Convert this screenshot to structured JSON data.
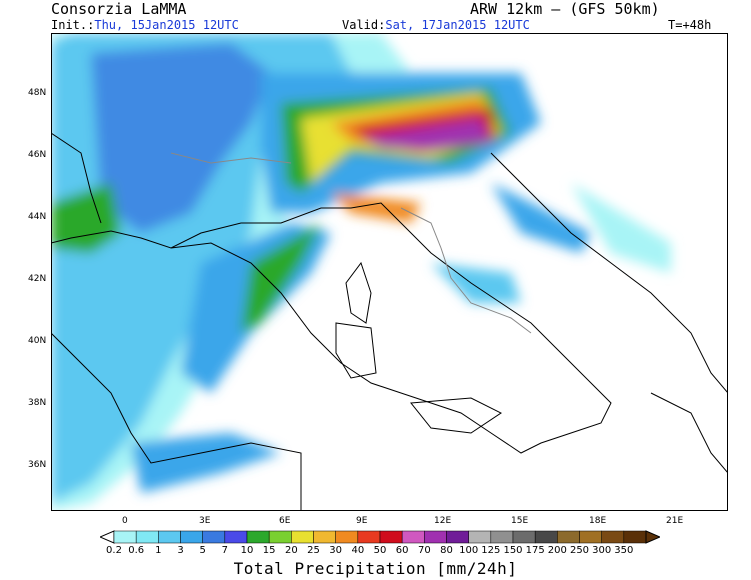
{
  "header": {
    "org": "Consorzia LaMMA",
    "model": "ARW 12km – (GFS 50km)",
    "init_label": "Init.:",
    "init_value": "Thu, 15Jan2015 12UTC",
    "valid_label": "Valid:",
    "valid_value": "Sat, 17Jan2015 12UTC",
    "lead": "T=+48h"
  },
  "axes": {
    "lat": [
      "48N",
      "46N",
      "44N",
      "42N",
      "40N",
      "38N",
      "36N"
    ],
    "lon": [
      "0",
      "3E",
      "6E",
      "9E",
      "12E",
      "15E",
      "18E",
      "21E"
    ]
  },
  "colorbar": {
    "labels": [
      "0.2",
      "0.6",
      "1",
      "3",
      "5",
      "7",
      "10",
      "15",
      "20",
      "25",
      "30",
      "40",
      "50",
      "60",
      "70",
      "80",
      "100",
      "125",
      "150",
      "175",
      "200",
      "250",
      "300",
      "350"
    ],
    "colors": [
      "#a8f4f6",
      "#80e8f4",
      "#5cc8f0",
      "#3aa6ea",
      "#3a7ae0",
      "#4a4ae8",
      "#2ca82c",
      "#7ad030",
      "#e8e030",
      "#f0b830",
      "#f08a20",
      "#e83a20",
      "#d00c1c",
      "#d058c0",
      "#a030b0",
      "#701c98",
      "#b4b4b4",
      "#909090",
      "#6c6c6c",
      "#484848",
      "#8c6a2c",
      "#a07024",
      "#7a4a14",
      "#5a3008"
    ],
    "title": "Total Precipitation [mm/24h]"
  }
}
